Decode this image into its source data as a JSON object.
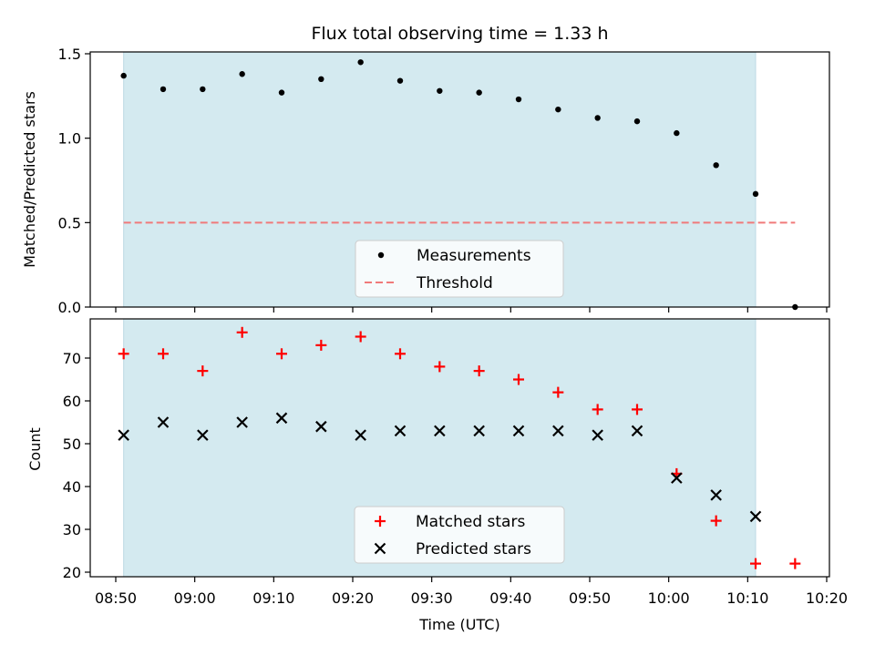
{
  "chart_data": {
    "title": "Flux total observing time = 1.33 h",
    "xlabel": "Time (UTC)",
    "x_ticks": [
      "08:50",
      "09:00",
      "09:10",
      "09:20",
      "09:30",
      "09:40",
      "09:50",
      "10:00",
      "10:10",
      "10:20"
    ],
    "x_range": [
      "08:48",
      "10:20"
    ],
    "observing_window": [
      "08:51",
      "10:11"
    ],
    "observing_window_color": "#d4eaf0",
    "panels": [
      {
        "type": "scatter",
        "ylabel": "Matched/Predicted stars",
        "ylim": [
          0,
          1.52
        ],
        "y_ticks": [
          "0.0",
          "0.5",
          "1.0",
          "1.5"
        ],
        "legend_position": "lower-center",
        "series": [
          {
            "name": "Measurements",
            "marker": "dot",
            "color": "#000000",
            "x": [
              "08:51",
              "08:56",
              "09:01",
              "09:06",
              "09:11",
              "09:16",
              "09:21",
              "09:26",
              "09:31",
              "09:36",
              "09:41",
              "09:46",
              "09:51",
              "09:56",
              "10:01",
              "10:06",
              "10:11",
              "10:16"
            ],
            "y": [
              1.37,
              1.29,
              1.29,
              1.38,
              1.27,
              1.35,
              1.45,
              1.34,
              1.28,
              1.27,
              1.23,
              1.17,
              1.12,
              1.1,
              1.03,
              0.84,
              0.67,
              0.0
            ]
          },
          {
            "name": "Threshold",
            "type": "line",
            "style": "dashed",
            "color": "#f07a7a",
            "x": [
              "08:51",
              "10:16"
            ],
            "y": [
              0.5,
              0.5
            ]
          }
        ]
      },
      {
        "type": "scatter",
        "ylabel": "Count",
        "ylim": [
          19,
          79
        ],
        "y_ticks": [
          "20",
          "30",
          "40",
          "50",
          "60",
          "70"
        ],
        "legend_position": "lower-center",
        "series": [
          {
            "name": "Matched stars",
            "marker": "plus",
            "color": "#ff0000",
            "x": [
              "08:51",
              "08:56",
              "09:01",
              "09:06",
              "09:11",
              "09:16",
              "09:21",
              "09:26",
              "09:31",
              "09:36",
              "09:41",
              "09:46",
              "09:51",
              "09:56",
              "10:01",
              "10:06",
              "10:11",
              "10:16"
            ],
            "y": [
              71,
              71,
              67,
              76,
              71,
              73,
              75,
              71,
              68,
              67,
              65,
              62,
              58,
              58,
              43,
              32,
              22,
              22
            ]
          },
          {
            "name": "Predicted stars",
            "marker": "x",
            "color": "#000000",
            "x": [
              "08:51",
              "08:56",
              "09:01",
              "09:06",
              "09:11",
              "09:16",
              "09:21",
              "09:26",
              "09:31",
              "09:36",
              "09:41",
              "09:46",
              "09:51",
              "09:56",
              "10:01",
              "10:06",
              "10:11"
            ],
            "y": [
              52,
              55,
              52,
              55,
              56,
              54,
              52,
              53,
              53,
              53,
              53,
              53,
              52,
              53,
              42,
              38,
              33
            ]
          }
        ]
      }
    ]
  }
}
